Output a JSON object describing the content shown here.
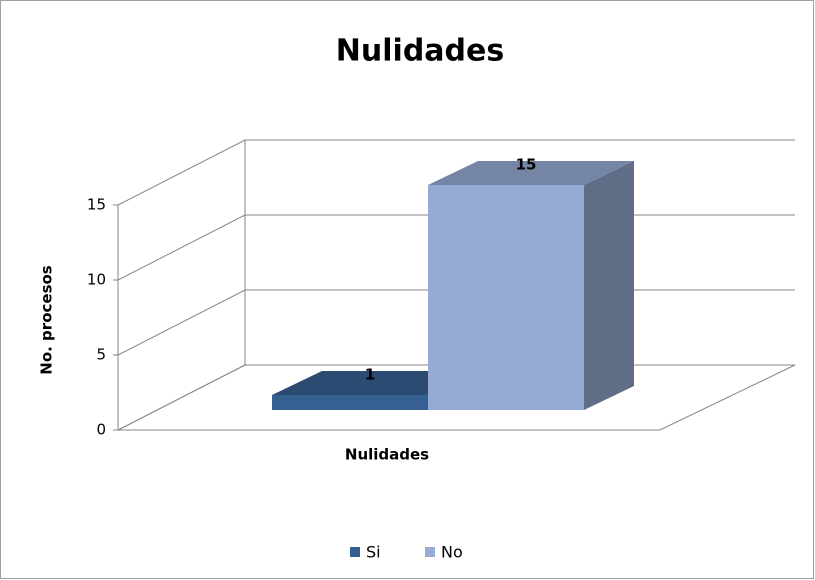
{
  "chart_data": {
    "type": "bar3d",
    "title": "Nulidades",
    "categories": [
      "Nulidades"
    ],
    "series": [
      {
        "name": "Si",
        "color": "#376092",
        "values": [
          1
        ]
      },
      {
        "name": "No",
        "color": "#95abd3",
        "values": [
          15
        ]
      }
    ],
    "ylabel": "No. procesos",
    "ylim": [
      0,
      15
    ],
    "yticks": [
      0,
      5,
      10,
      15
    ],
    "grid": true,
    "legend": "bottom"
  }
}
